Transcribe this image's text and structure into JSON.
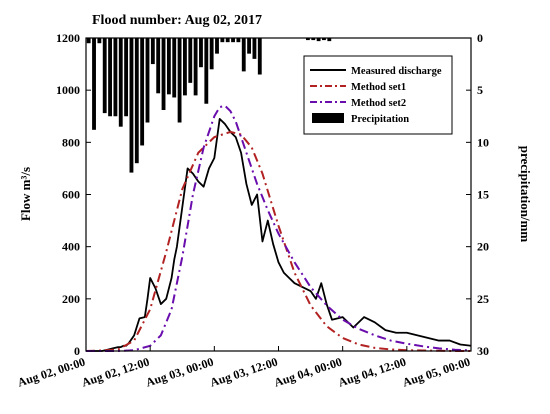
{
  "chart_data": {
    "type": "line",
    "title": "Flood number: Aug 02, 2017",
    "xlabel": "",
    "ylabel": "Flow m³/s",
    "ylabel_right": "precipitation/mm",
    "xlim_hours": [
      0,
      72
    ],
    "x_tick_labels": [
      "Aug 02, 00:00",
      "Aug 02, 12:00",
      "Aug 03, 00:00",
      "Aug 03, 12:00",
      "Aug 04, 00:00",
      "Aug 04, 12:00",
      "Aug 05, 00:00"
    ],
    "ylim": [
      0,
      1200
    ],
    "y_ticks": [
      0,
      200,
      400,
      600,
      800,
      1000,
      1200
    ],
    "ylim_right": [
      0,
      30
    ],
    "y_ticks_right": [
      0,
      5,
      10,
      15,
      20,
      25,
      30
    ],
    "right_axis_inverted": true,
    "grid": false,
    "legend_position": "top-right",
    "series": [
      {
        "name": "Measured discharge",
        "style": "solid",
        "color": "#000000",
        "x": [
          0,
          3,
          4,
          5,
          6,
          6.5,
          7,
          7.5,
          8,
          9,
          10,
          11,
          11.5,
          12,
          13,
          14,
          15,
          16,
          16.5,
          17,
          18,
          19,
          20,
          21,
          22,
          23,
          24,
          25,
          26,
          27,
          28,
          29,
          30,
          31,
          32,
          33,
          34,
          35,
          36,
          37,
          38,
          39,
          40,
          41,
          42,
          43,
          44,
          45,
          46,
          48,
          50,
          52,
          54,
          56,
          58,
          60,
          62,
          64,
          66,
          68,
          70,
          72
        ],
        "y": [
          0,
          0,
          5,
          10,
          15,
          15,
          20,
          20,
          30,
          60,
          125,
          130,
          200,
          280,
          240,
          180,
          200,
          280,
          350,
          400,
          550,
          700,
          680,
          650,
          630,
          700,
          740,
          890,
          870,
          840,
          820,
          760,
          640,
          560,
          600,
          420,
          500,
          410,
          340,
          300,
          280,
          260,
          250,
          240,
          230,
          200,
          260,
          180,
          120,
          130,
          90,
          130,
          110,
          80,
          70,
          70,
          60,
          50,
          40,
          40,
          25,
          20
        ]
      },
      {
        "name": "Method set1",
        "style": "dash-dot",
        "color": "#b22222",
        "x": [
          0,
          3,
          6,
          9,
          12,
          15,
          18,
          21,
          24,
          27,
          29,
          31,
          33,
          36,
          39,
          42,
          45,
          48,
          51,
          54,
          57,
          60,
          63,
          66,
          69,
          72
        ],
        "y": [
          0,
          2,
          6,
          40,
          160,
          380,
          620,
          760,
          820,
          840,
          830,
          780,
          680,
          480,
          300,
          175,
          95,
          50,
          25,
          12,
          6,
          3,
          2,
          1,
          0,
          0
        ]
      },
      {
        "name": "Method set2",
        "style": "dash-dot",
        "color": "#6a0dad",
        "x": [
          0,
          6,
          9,
          12,
          14,
          16,
          18,
          20,
          22,
          24,
          25,
          26,
          27,
          28,
          30,
          32,
          34,
          36,
          39,
          42,
          45,
          48,
          51,
          54,
          57,
          60,
          63,
          66,
          69,
          72
        ],
        "y": [
          0,
          0,
          3,
          20,
          60,
          160,
          360,
          600,
          780,
          900,
          935,
          940,
          920,
          880,
          760,
          640,
          540,
          450,
          340,
          245,
          175,
          120,
          85,
          60,
          40,
          28,
          18,
          10,
          5,
          2
        ]
      }
    ],
    "bar_series": {
      "name": "Precipitation",
      "axis": "right",
      "color": "#000000",
      "x": [
        0.5,
        1.5,
        2.5,
        3.5,
        4.5,
        5.5,
        6.5,
        7.5,
        8.5,
        9.5,
        10.5,
        11.5,
        12.5,
        13.5,
        14.5,
        15.5,
        16.5,
        17.5,
        18.5,
        19.5,
        20.5,
        21.5,
        22.5,
        23.5,
        24.5,
        25.5,
        26.5,
        27.5,
        28.5,
        29.5,
        30.5,
        31.5,
        32.5,
        41.5,
        42.5,
        43.5,
        44.5,
        45.5
      ],
      "values": [
        0.5,
        8.8,
        0.5,
        7.2,
        7.5,
        7.5,
        8.5,
        7.5,
        12.9,
        12.0,
        10.3,
        8.1,
        2.5,
        5.3,
        6.9,
        5.4,
        5.7,
        8.1,
        5.5,
        4.3,
        5.5,
        2.8,
        6.3,
        3.0,
        1.5,
        0.4,
        0.4,
        0.4,
        0.4,
        3.2,
        1.5,
        2.0,
        3.5,
        0.2,
        0.2,
        0.3,
        0.2,
        0.3
      ]
    }
  }
}
